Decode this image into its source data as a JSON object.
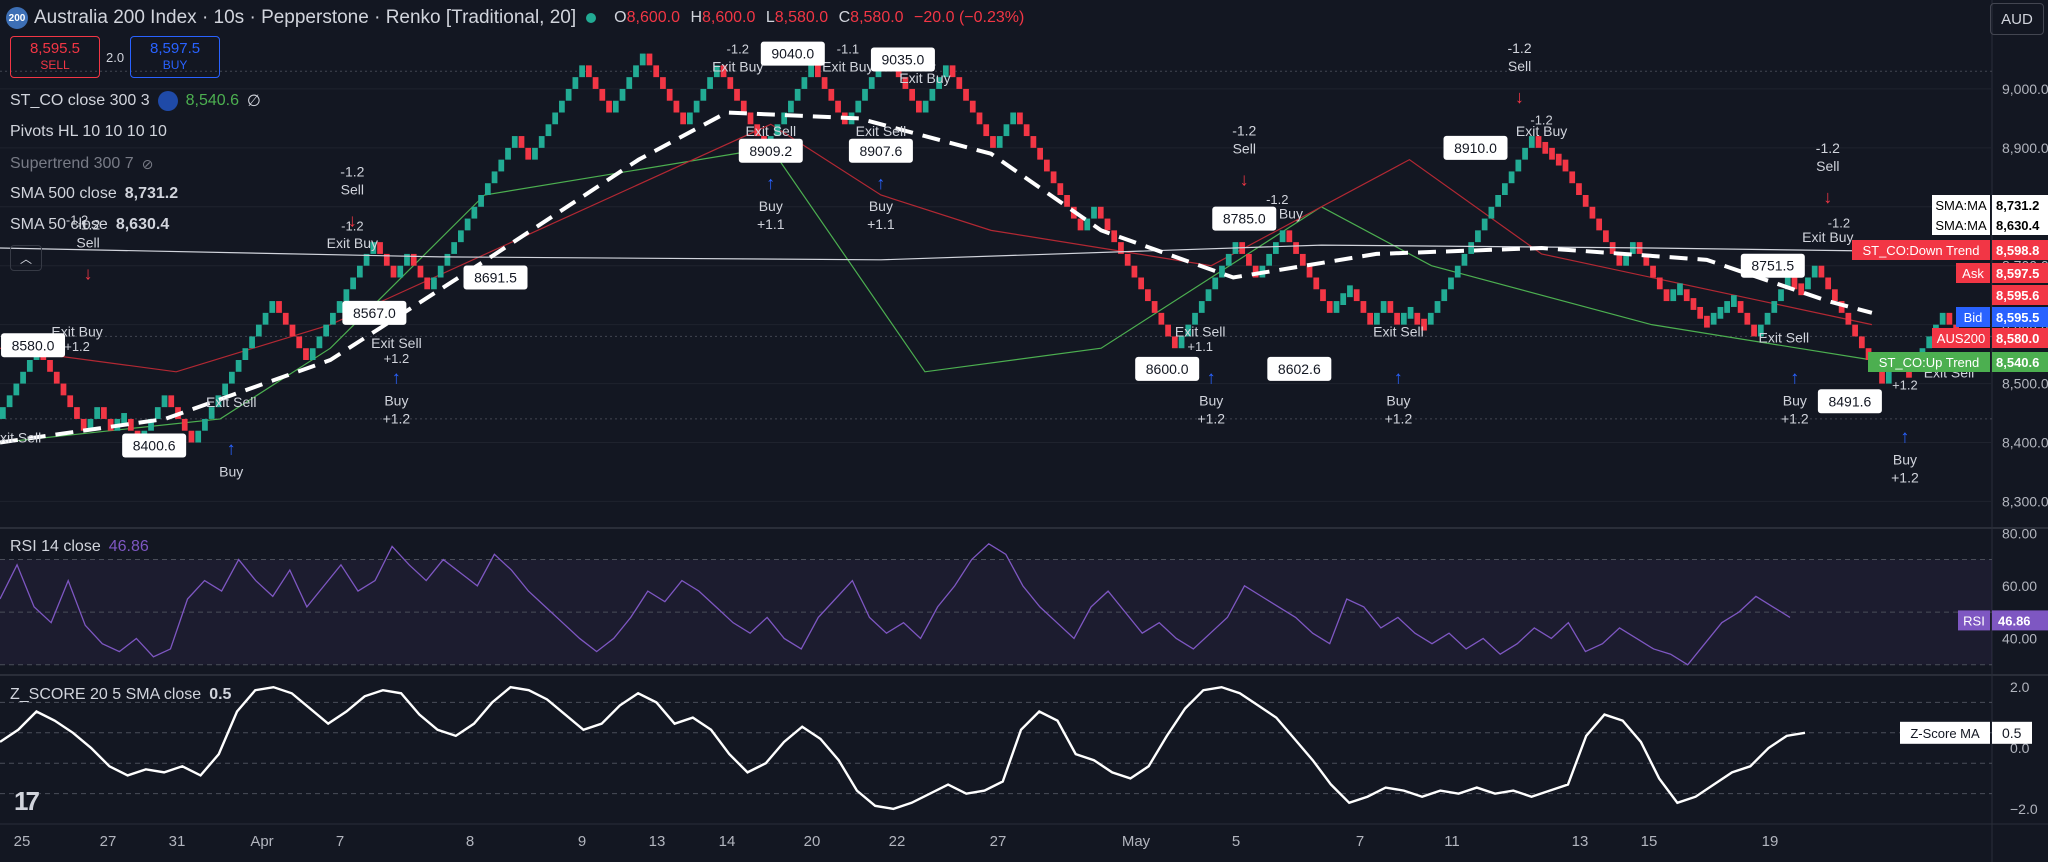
{
  "header": {
    "badge": "200",
    "title": "Australia 200 Index · 10s · Pepperstone · Renko [Traditional, 20]",
    "ohlc": [
      {
        "k": "O",
        "v": "8,600.0"
      },
      {
        "k": "H",
        "v": "8,600.0"
      },
      {
        "k": "L",
        "v": "8,580.0"
      },
      {
        "k": "C",
        "v": "8,580.0"
      },
      {
        "k": "",
        "v": "−20.0 (−0.23%)"
      }
    ],
    "currency": "AUD"
  },
  "trade": {
    "sell_price": "8,595.5",
    "sell_label": "SELL",
    "spread": "2.0",
    "buy_price": "8,597.5",
    "buy_label": "BUY"
  },
  "legends": {
    "st_co": {
      "label": "ST_CO close 300 3",
      "value": "8,540.6",
      "extra": "∅"
    },
    "pivots": {
      "label": "Pivots HL 10 10 10 10"
    },
    "supertrend": {
      "label": "Supertrend 300 7"
    },
    "sma500": {
      "label": "SMA 500 close",
      "value": "8,731.2"
    },
    "sma50": {
      "label": "SMA 50 close",
      "value": "8,630.4"
    },
    "rsi": {
      "label": "RSI 14 close",
      "value": "46.86"
    },
    "zscore": {
      "label": "Z_SCORE 20 5 SMA close",
      "value": "0.5"
    }
  },
  "colors": {
    "up": "#22ab94",
    "down": "#f23645",
    "buy": "#2962ff",
    "rsi": "#7e57c2",
    "bg": "#131722",
    "grid": "#2a2e39"
  },
  "chart_data": {
    "type": "renko",
    "price_axis": {
      "ticks": [
        "9,000.0",
        "8,900.0",
        "8,800.0",
        "8,700.0",
        "8,600.0",
        "8,500.0",
        "8,400.0",
        "8,300.0"
      ],
      "tick_values": [
        9000,
        8900,
        8800,
        8700,
        8600,
        8500,
        8400,
        8300
      ],
      "ylim": [
        8260,
        9100
      ]
    },
    "time_axis": [
      "25",
      "27",
      "31",
      "Apr",
      "7",
      "8",
      "9",
      "13",
      "14",
      "20",
      "22",
      "27",
      "May",
      "5",
      "7",
      "11",
      "13",
      "15",
      "19"
    ],
    "brick_size": 20,
    "brick_path": [
      [
        0,
        8440
      ],
      [
        2,
        8560
      ],
      [
        4,
        8480
      ],
      [
        6,
        8420
      ],
      [
        8,
        8460
      ],
      [
        10,
        8420
      ],
      [
        12,
        8440
      ],
      [
        14,
        8400
      ],
      [
        16,
        8480
      ],
      [
        18,
        8400
      ],
      [
        21,
        8500
      ],
      [
        24,
        8640
      ],
      [
        27,
        8540
      ],
      [
        30,
        8740
      ],
      [
        32,
        8680
      ],
      [
        34,
        8720
      ],
      [
        36,
        8660
      ],
      [
        40,
        8920
      ],
      [
        42,
        8880
      ],
      [
        44,
        8920
      ],
      [
        48,
        9040
      ],
      [
        50,
        8960
      ],
      [
        52,
        9060
      ],
      [
        54,
        8940
      ],
      [
        56,
        9040
      ],
      [
        58,
        8900
      ],
      [
        60,
        9040
      ],
      [
        62,
        8940
      ],
      [
        64,
        9060
      ],
      [
        66,
        8960
      ],
      [
        68,
        9040
      ],
      [
        70,
        8900
      ],
      [
        72,
        8960
      ],
      [
        76,
        8760
      ],
      [
        78,
        8800
      ],
      [
        84,
        8560
      ],
      [
        88,
        8740
      ],
      [
        90,
        8680
      ],
      [
        92,
        8760
      ],
      [
        96,
        8620
      ],
      [
        99,
        8660
      ],
      [
        101,
        8600
      ],
      [
        103,
        8640
      ],
      [
        105,
        8600
      ],
      [
        107,
        8620
      ],
      [
        109,
        8600
      ],
      [
        114,
        8740
      ],
      [
        118,
        8920
      ],
      [
        120,
        8900
      ],
      [
        122,
        8880
      ],
      [
        128,
        8700
      ],
      [
        130,
        8740
      ],
      [
        134,
        8640
      ],
      [
        136,
        8660
      ],
      [
        140,
        8600
      ],
      [
        144,
        8640
      ],
      [
        146,
        8580
      ],
      [
        150,
        8680
      ],
      [
        152,
        8660
      ],
      [
        154,
        8700
      ],
      [
        160,
        8500
      ],
      [
        162,
        8540
      ],
      [
        164,
        8520
      ],
      [
        168,
        8620
      ],
      [
        170,
        8580
      ]
    ],
    "sma_main_dashed": [
      [
        0,
        8400
      ],
      [
        15,
        8440
      ],
      [
        30,
        8540
      ],
      [
        45,
        8720
      ],
      [
        58,
        8880
      ],
      [
        66,
        8960
      ],
      [
        78,
        8950
      ],
      [
        90,
        8890
      ],
      [
        100,
        8760
      ],
      [
        112,
        8680
      ],
      [
        125,
        8720
      ],
      [
        140,
        8730
      ],
      [
        155,
        8710
      ],
      [
        166,
        8640
      ],
      [
        170,
        8620
      ]
    ],
    "sma_flat": [
      [
        0,
        8730
      ],
      [
        40,
        8715
      ],
      [
        80,
        8710
      ],
      [
        120,
        8735
      ],
      [
        150,
        8730
      ],
      [
        170,
        8725
      ]
    ],
    "supertrend_up": [
      [
        0,
        8400
      ],
      [
        20,
        8440
      ],
      [
        30,
        8560
      ],
      [
        44,
        8820
      ],
      [
        70,
        8900
      ],
      [
        84,
        8520
      ],
      [
        100,
        8560
      ],
      [
        120,
        8800
      ],
      [
        130,
        8700
      ],
      [
        150,
        8600
      ],
      [
        170,
        8540
      ]
    ],
    "supertrend_down": [
      [
        0,
        8560
      ],
      [
        16,
        8520
      ],
      [
        30,
        8600
      ],
      [
        70,
        8940
      ],
      [
        80,
        8820
      ],
      [
        90,
        8760
      ],
      [
        110,
        8700
      ],
      [
        128,
        8880
      ],
      [
        140,
        8720
      ],
      [
        160,
        8640
      ],
      [
        170,
        8600
      ]
    ],
    "annotations": [
      {
        "idx": 3,
        "price": 8565,
        "text": "8580.0"
      },
      {
        "idx": 14,
        "price": 8395,
        "text": "8400.6"
      },
      {
        "idx": 34,
        "price": 8620,
        "text": "8567.0"
      },
      {
        "idx": 45,
        "price": 8680,
        "text": "8691.5"
      },
      {
        "idx": 72,
        "price": 9060,
        "text": "9040.0"
      },
      {
        "idx": 82,
        "price": 9050,
        "text": "9035.0"
      },
      {
        "idx": 70,
        "price": 8895,
        "text": "8909.2"
      },
      {
        "idx": 80,
        "price": 8895,
        "text": "8907.6"
      },
      {
        "idx": 113,
        "price": 8780,
        "text": "8785.0"
      },
      {
        "idx": 106,
        "price": 8525,
        "text": "8600.0"
      },
      {
        "idx": 118,
        "price": 8525,
        "text": "8602.6"
      },
      {
        "idx": 134,
        "price": 8900,
        "text": "8910.0"
      },
      {
        "idx": 161,
        "price": 8700,
        "text": "8751.5"
      },
      {
        "idx": 168,
        "price": 8470,
        "text": "8491.6"
      }
    ],
    "signals": [
      {
        "idx": 8,
        "price": 8700,
        "dir": "down",
        "lines": [
          "-1.2",
          "Sell"
        ]
      },
      {
        "idx": 32,
        "price": 8790,
        "dir": "down",
        "lines": [
          "-1.2",
          "Sell"
        ]
      },
      {
        "idx": 113,
        "price": 8860,
        "dir": "down",
        "lines": [
          "-1.2",
          "Sell"
        ]
      },
      {
        "idx": 138,
        "price": 9000,
        "dir": "down",
        "lines": [
          "-1.2",
          "Sell"
        ]
      },
      {
        "idx": 166,
        "price": 8830,
        "dir": "down",
        "lines": [
          "-1.2",
          "Sell"
        ]
      },
      {
        "idx": 21,
        "price": 8380,
        "dir": "up",
        "lines": [
          "Buy"
        ]
      },
      {
        "idx": 36,
        "price": 8500,
        "dir": "up",
        "lines": [
          "Buy",
          "+1.2"
        ]
      },
      {
        "idx": 70,
        "price": 8830,
        "dir": "up",
        "lines": [
          "Buy",
          "+1.1"
        ]
      },
      {
        "idx": 80,
        "price": 8830,
        "dir": "up",
        "lines": [
          "Buy",
          "+1.1"
        ]
      },
      {
        "idx": 110,
        "price": 8500,
        "dir": "up",
        "lines": [
          "Buy",
          "+1.2"
        ]
      },
      {
        "idx": 127,
        "price": 8500,
        "dir": "up",
        "lines": [
          "Buy",
          "+1.2"
        ]
      },
      {
        "idx": 163,
        "price": 8500,
        "dir": "up",
        "lines": [
          "Buy",
          "+1.2"
        ]
      },
      {
        "idx": 173,
        "price": 8400,
        "dir": "up",
        "lines": [
          "Buy",
          "+1.2"
        ]
      }
    ],
    "exit_labels": [
      {
        "idx": 7,
        "price": 8580,
        "text": "Exit Buy"
      },
      {
        "idx": 32,
        "price": 8730,
        "text": "Exit Buy"
      },
      {
        "idx": 36,
        "price": 8560,
        "text": "Exit Sell"
      },
      {
        "idx": 21,
        "price": 8460,
        "text": "Exit Sell"
      },
      {
        "idx": 0,
        "price": 8400,
        "text": "xit Sell"
      },
      {
        "idx": 67,
        "price": 9030,
        "text": "Exit Buy"
      },
      {
        "idx": 77,
        "price": 9030,
        "text": "Exit Buy"
      },
      {
        "idx": 84,
        "price": 9010,
        "text": "Exit Buy"
      },
      {
        "idx": 70,
        "price": 8920,
        "text": "Exit Sell"
      },
      {
        "idx": 80,
        "price": 8920,
        "text": "Exit Sell"
      },
      {
        "idx": 116,
        "price": 8780,
        "text": "Exit Buy"
      },
      {
        "idx": 109,
        "price": 8580,
        "text": "Exit Sell"
      },
      {
        "idx": 127,
        "price": 8580,
        "text": "Exit Sell"
      },
      {
        "idx": 140,
        "price": 8920,
        "text": "Exit Buy"
      },
      {
        "idx": 166,
        "price": 8740,
        "text": "Exit Buy"
      },
      {
        "idx": 162,
        "price": 8570,
        "text": "Exit Sell"
      },
      {
        "idx": 177,
        "price": 8510,
        "text": "Exit Sell"
      }
    ],
    "small_labels": [
      {
        "idx": 7,
        "price": 8770,
        "text": "-1.2"
      },
      {
        "idx": 7,
        "price": 8555,
        "text": "+1.2"
      },
      {
        "idx": 32,
        "price": 8760,
        "text": "-1.2"
      },
      {
        "idx": 36,
        "price": 8535,
        "text": "+1.2"
      },
      {
        "idx": 67,
        "price": 9060,
        "text": "-1.2"
      },
      {
        "idx": 77,
        "price": 9060,
        "text": "-1.1"
      },
      {
        "idx": 84,
        "price": 9040,
        "text": "-1.1"
      },
      {
        "idx": 70,
        "price": 8890,
        "text": "+1.2"
      },
      {
        "idx": 80,
        "price": 8890,
        "text": "+1.1"
      },
      {
        "idx": 116,
        "price": 8805,
        "text": "-1.2"
      },
      {
        "idx": 109,
        "price": 8555,
        "text": "+1.1"
      },
      {
        "idx": 140,
        "price": 8940,
        "text": "-1.2"
      },
      {
        "idx": 167,
        "price": 8765,
        "text": "-1.2"
      },
      {
        "idx": 173,
        "price": 8490,
        "text": "+1.2"
      }
    ],
    "axis_tags": [
      {
        "text": "8,731.2",
        "label": "SMA:MA",
        "value": 8731.2,
        "color": "#ffffff",
        "fg": "#000000"
      },
      {
        "text": "8,630.4",
        "label": "SMA:MA",
        "value": 8630.4,
        "color": "#ffffff",
        "fg": "#000000"
      },
      {
        "text": "8,598.8",
        "label": "ST_CO:Down Trend",
        "value": 8598.8,
        "color": "#f23645",
        "fg": "#ffffff"
      },
      {
        "text": "8,597.5",
        "label": "Ask",
        "value": 8597.5,
        "color": "#f23645",
        "fg": "#ffffff"
      },
      {
        "text": "8,595.6",
        "label": "",
        "value": 8595.6,
        "color": "#f23645",
        "fg": "#ffffff"
      },
      {
        "text": "8,595.5",
        "label": "Bid",
        "value": 8595.5,
        "color": "#2962ff",
        "fg": "#ffffff"
      },
      {
        "text": "8,580.0",
        "label": "AUS200",
        "value": 8580,
        "color": "#f23645",
        "fg": "#ffffff"
      },
      {
        "text": "8,540.6",
        "label": "ST_CO:Up Trend",
        "value": 8540.6,
        "color": "#4caf50",
        "fg": "#ffffff"
      }
    ],
    "rsi": {
      "axis_ticks": [
        "80.00",
        "60.00",
        "40.00"
      ],
      "tick_values": [
        80,
        60,
        40
      ],
      "ylim": [
        28,
        82
      ],
      "bands": [
        70,
        50,
        30
      ],
      "value_tag": {
        "label": "RSI",
        "text": "46.86",
        "value": 46.86
      },
      "values": [
        55,
        68,
        52,
        46,
        62,
        45,
        38,
        35,
        40,
        33,
        36,
        55,
        62,
        58,
        70,
        62,
        56,
        66,
        52,
        60,
        68,
        58,
        62,
        75,
        68,
        62,
        70,
        65,
        60,
        72,
        66,
        58,
        52,
        46,
        40,
        35,
        40,
        48,
        58,
        54,
        62,
        58,
        52,
        46,
        42,
        48,
        40,
        36,
        48,
        55,
        62,
        48,
        42,
        46,
        40,
        52,
        60,
        70,
        76,
        72,
        60,
        52,
        46,
        40,
        52,
        58,
        50,
        42,
        46,
        40,
        36,
        42,
        48,
        60,
        56,
        52,
        48,
        42,
        38,
        55,
        52,
        44,
        48,
        42,
        38,
        42,
        36,
        40,
        34,
        38,
        44,
        40,
        46,
        35,
        38,
        44,
        40,
        36,
        34,
        30,
        38,
        46,
        50,
        56,
        52,
        48
      ]
    },
    "zscore": {
      "axis_ticks": [
        "2.0",
        "0.0",
        "−2.0"
      ],
      "tick_values": [
        2,
        0,
        -2
      ],
      "ylim": [
        -2.3,
        2.4
      ],
      "bands": [
        1.5,
        0.5,
        -0.5,
        -1.5
      ],
      "value_tag": {
        "label": "Z-Score MA",
        "text": "0.5",
        "value": 0.5
      },
      "values": [
        0.2,
        0.6,
        1.2,
        0.9,
        0.5,
        0.0,
        -0.6,
        -0.9,
        -0.7,
        -0.8,
        -0.6,
        -0.9,
        -0.2,
        1.2,
        1.9,
        2.0,
        1.8,
        1.3,
        0.8,
        1.2,
        1.7,
        1.9,
        1.8,
        1.1,
        0.6,
        0.4,
        0.8,
        1.5,
        2.0,
        1.9,
        1.6,
        1.1,
        0.6,
        0.8,
        1.4,
        1.8,
        1.5,
        0.8,
        1.0,
        0.6,
        -0.2,
        -0.8,
        -0.5,
        0.2,
        0.7,
        0.3,
        -0.4,
        -1.4,
        -1.9,
        -2.0,
        -1.8,
        -1.5,
        -1.2,
        -1.5,
        -1.4,
        -1.1,
        0.6,
        1.2,
        0.9,
        -0.2,
        -0.4,
        -0.8,
        -1.0,
        -0.6,
        0.4,
        1.3,
        1.9,
        2.0,
        1.8,
        1.4,
        1.0,
        0.3,
        -0.4,
        -1.2,
        -1.8,
        -1.6,
        -1.3,
        -1.4,
        -1.6,
        -1.4,
        -1.5,
        -1.3,
        -1.5,
        -1.4,
        -1.6,
        -1.4,
        -1.2,
        0.4,
        1.1,
        0.9,
        0.2,
        -1.0,
        -1.8,
        -1.6,
        -1.2,
        -0.8,
        -0.6,
        0.0,
        0.4,
        0.5
      ]
    }
  }
}
